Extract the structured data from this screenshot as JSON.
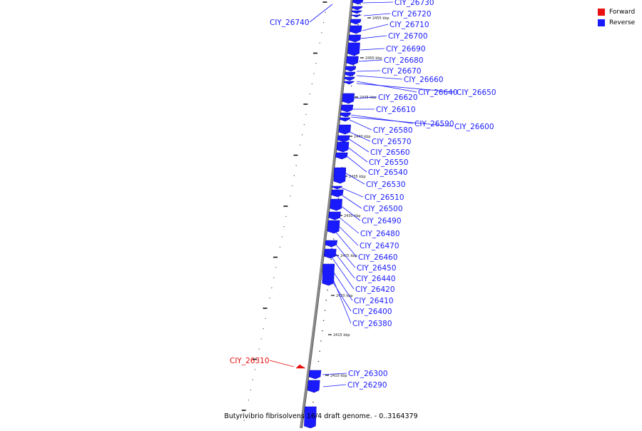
{
  "caption": "Butyrivibrio fibrisolvens 16/4 draft genome. - 0..3164379",
  "legend": [
    {
      "label": "Forward",
      "color": "#e81010"
    },
    {
      "label": "Reverse",
      "color": "#1a1aff"
    }
  ],
  "colors": {
    "forward": "#e81010",
    "reverse": "#1a1aff",
    "backbone": "#8a8a8a"
  },
  "scale_labels": [
    "2455 kbp",
    "2450 kbp",
    "2445 kbp",
    "2440 kbp",
    "2435 kbp",
    "2430 kbp",
    "2425 kbp",
    "2420 kbp",
    "2415 kbp",
    "2410 kbp"
  ],
  "genes": [
    {
      "id": "CIY_26740",
      "strand": "reverse"
    },
    {
      "id": "CIY_26730",
      "strand": "reverse"
    },
    {
      "id": "CIY_26720",
      "strand": "reverse"
    },
    {
      "id": "CIY_26710",
      "strand": "reverse"
    },
    {
      "id": "CIY_26700",
      "strand": "reverse"
    },
    {
      "id": "CIY_26690",
      "strand": "reverse"
    },
    {
      "id": "CIY_26680",
      "strand": "reverse"
    },
    {
      "id": "CIY_26670",
      "strand": "reverse"
    },
    {
      "id": "CIY_26660",
      "strand": "reverse"
    },
    {
      "id": "CIY_26640",
      "strand": "reverse"
    },
    {
      "id": "CIY_26650",
      "strand": "reverse"
    },
    {
      "id": "CIY_26620",
      "strand": "reverse"
    },
    {
      "id": "CIY_26610",
      "strand": "reverse"
    },
    {
      "id": "CIY_26590",
      "strand": "reverse"
    },
    {
      "id": "CIY_26600",
      "strand": "reverse"
    },
    {
      "id": "CIY_26580",
      "strand": "reverse"
    },
    {
      "id": "CIY_26570",
      "strand": "reverse"
    },
    {
      "id": "CIY_26560",
      "strand": "reverse"
    },
    {
      "id": "CIY_26550",
      "strand": "reverse"
    },
    {
      "id": "CIY_26540",
      "strand": "reverse"
    },
    {
      "id": "CIY_26530",
      "strand": "reverse"
    },
    {
      "id": "CIY_26510",
      "strand": "reverse"
    },
    {
      "id": "CIY_26500",
      "strand": "reverse"
    },
    {
      "id": "CIY_26490",
      "strand": "reverse"
    },
    {
      "id": "CIY_26480",
      "strand": "reverse"
    },
    {
      "id": "CIY_26470",
      "strand": "reverse"
    },
    {
      "id": "CIY_26460",
      "strand": "reverse"
    },
    {
      "id": "CIY_26450",
      "strand": "reverse"
    },
    {
      "id": "CIY_26440",
      "strand": "reverse"
    },
    {
      "id": "CIY_26420",
      "strand": "reverse"
    },
    {
      "id": "CIY_26410",
      "strand": "reverse"
    },
    {
      "id": "CIY_26400",
      "strand": "reverse"
    },
    {
      "id": "CIY_26380",
      "strand": "reverse"
    },
    {
      "id": "CIY_26310",
      "strand": "forward"
    },
    {
      "id": "CIY_26300",
      "strand": "reverse"
    },
    {
      "id": "CIY_26290",
      "strand": "reverse"
    }
  ]
}
